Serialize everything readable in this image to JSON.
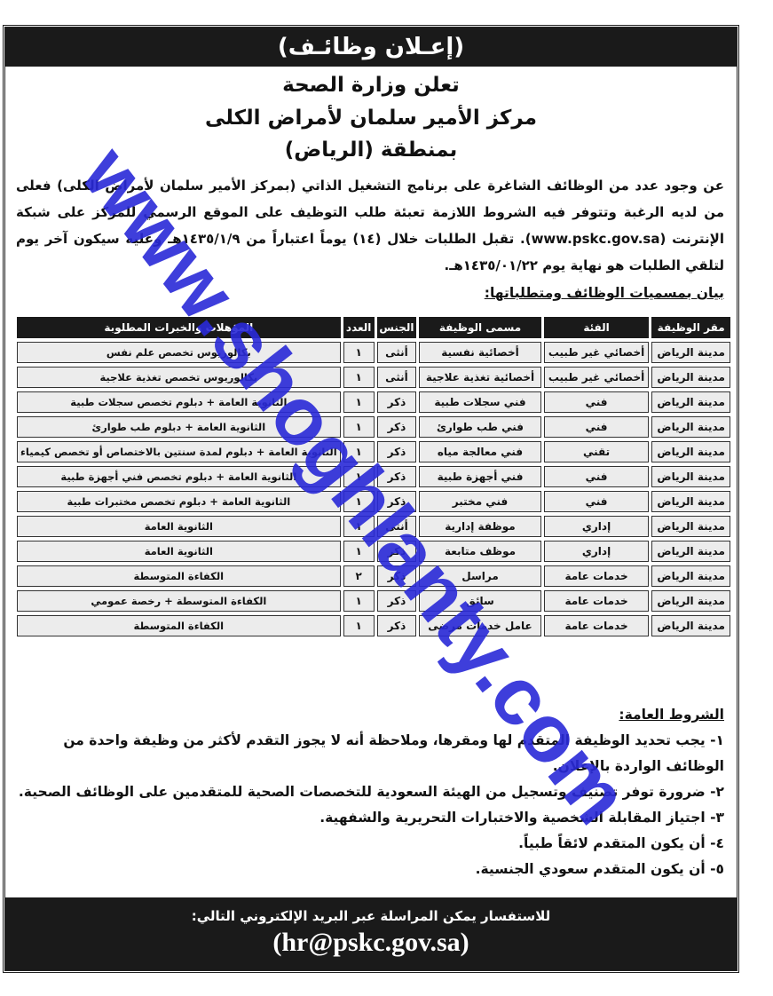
{
  "title": "(إعـلان وظائـف)",
  "headings": [
    "تعلن وزارة الصحة",
    "مركز الأمير سلمان لأمراض الكلى",
    "بمنطقة (الرياض)"
  ],
  "intro": "عن وجود عدد من الوظائف الشاغرة على برنامج التشغيل الذاتي (بمركز الأمير سلمان لأمراض الكلى) فعلى من لديه الرغبة وتتوفر فيه الشروط اللازمة تعبئة طلب التوظيف على الموقع الرسمي للمركز على شبكة الإنترنت (www.pskc.gov.sa). تقبل الطلبات خلال (١٤) يوماً اعتباراً من ١٤٣٥/١/٩هـ وعليه سيكون آخر يوم لتلقي الطلبات هو نهاية يوم ١٤٣٥/٠١/٢٢هـ.",
  "table_title": "بيان بمسميات الوظائف ومتطلباتها:",
  "table": {
    "headers": [
      "مقر الوظيفة",
      "الفئة",
      "مسمى الوظيفة",
      "الجنس",
      "العدد",
      "المؤهلات والخبرات المطلوبة"
    ],
    "rows": [
      [
        "مدينة الرياض",
        "أخصائي غير طبيب",
        "أخصائية نفسية",
        "أنثى",
        "١",
        "بكالوريوس تخصص علم نفس"
      ],
      [
        "مدينة الرياض",
        "أخصائي غير طبيب",
        "أخصائية تغذية علاجية",
        "أنثى",
        "١",
        "بكالوريوس تخصص تغذية علاجية"
      ],
      [
        "مدينة الرياض",
        "فني",
        "فني سجلات طبية",
        "ذكر",
        "١",
        "الثانوية العامة + دبلوم تخصص سجلات طبية"
      ],
      [
        "مدينة الرياض",
        "فني",
        "فني طب طوارئ",
        "ذكر",
        "١",
        "الثانوية العامة + دبلوم طب طوارئ"
      ],
      [
        "مدينة الرياض",
        "تقني",
        "فني معالجة مياه",
        "ذكر",
        "١",
        "الثانوية العامة + دبلوم لمدة سنتين بالاختصاص أو تخصص كيمياء"
      ],
      [
        "مدينة الرياض",
        "فني",
        "فني أجهزة طبية",
        "ذكر",
        "١",
        "الثانوية العامة + دبلوم تخصص فني أجهزة طبية"
      ],
      [
        "مدينة الرياض",
        "فني",
        "فني مختبر",
        "ذكر",
        "١",
        "الثانوية العامة + دبلوم تخصص مختبرات طبية"
      ],
      [
        "مدينة الرياض",
        "إداري",
        "موظفة إدارية",
        "أنثى",
        "١",
        "الثانوية العامة"
      ],
      [
        "مدينة الرياض",
        "إداري",
        "موظف متابعة",
        "ذكر",
        "١",
        "الثانوية العامة"
      ],
      [
        "مدينة الرياض",
        "خدمات عامة",
        "مراسل",
        "ذكر",
        "٢",
        "الكفاءة المتوسطة"
      ],
      [
        "مدينة الرياض",
        "خدمات عامة",
        "سائق",
        "ذكر",
        "١",
        "الكفاءة المتوسطة + رخصة عمومي"
      ],
      [
        "مدينة الرياض",
        "خدمات عامة",
        "عامل خدمات مرضى",
        "ذكر",
        "١",
        "الكفاءة المتوسطة"
      ]
    ]
  },
  "conditions": {
    "heading": "الشروط العامة:",
    "items": [
      "١- يجب تحديد الوظيفة المتقدم لها ومقرها، وملاحظة أنه لا يجوز التقدم لأكثر من وظيفة واحدة من الوظائف الواردة بالإعلان.",
      "٢- ضرورة توفر تصنيف وتسجيل من الهيئة السعودية للتخصصات الصحية للمتقدمين على الوظائف الصحية.",
      "٣- اجتياز المقابلة الشخصية والاختبارات التحريرية والشفهية.",
      "٤- أن يكون المتقدم لائقاً طبياً.",
      "٥- أن يكون المتقدم سعودي الجنسية."
    ]
  },
  "footer": {
    "line1": "للاستفسار يمكن المراسلة عبر البريد الإلكتروني التالي:",
    "email": "(hr@pskc.gov.sa)"
  },
  "watermark": "www.shoghlanty.com",
  "colors": {
    "banner": "#1a1a1a",
    "watermark": "#2a2ad8",
    "cell": "#ececec"
  }
}
